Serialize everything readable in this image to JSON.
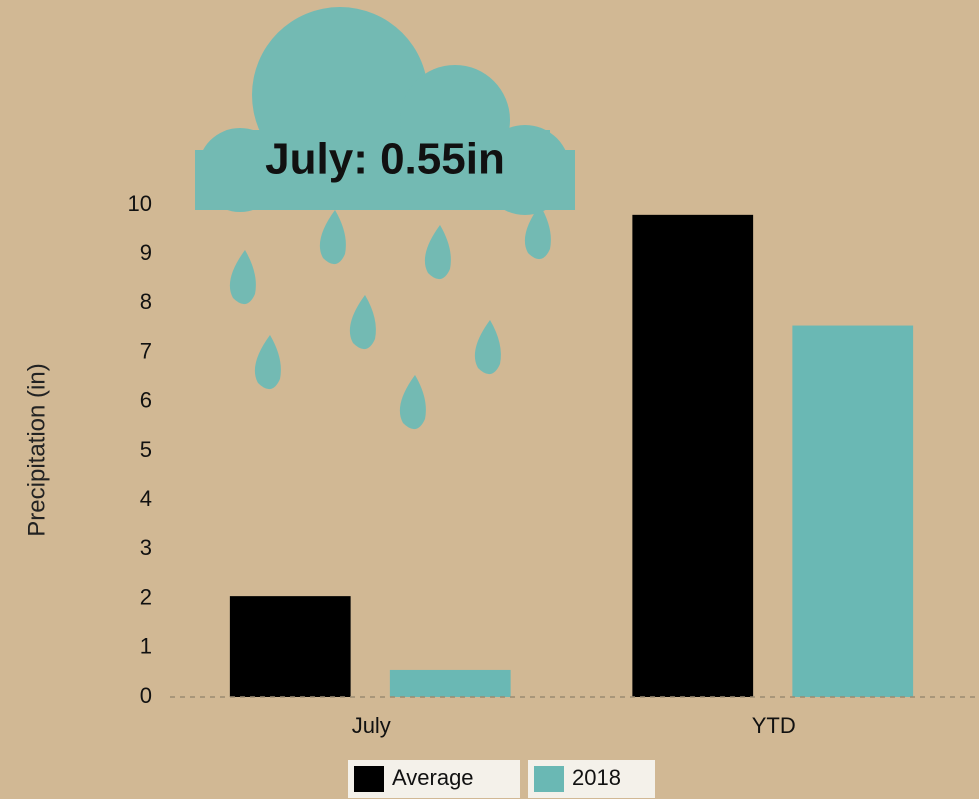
{
  "chart_data": {
    "type": "bar",
    "annotation": "July: 0.55in",
    "y_label": "Precipitation (in)",
    "categories": [
      "July",
      "YTD"
    ],
    "series": [
      {
        "name": "Average",
        "color": "#000000",
        "values": [
          2.05,
          9.8
        ]
      },
      {
        "name": "2018",
        "color": "#6ab8b4",
        "values": [
          0.55,
          7.55
        ]
      }
    ],
    "ylim": [
      0,
      10
    ],
    "yticks": [
      0,
      1,
      2,
      3,
      4,
      5,
      6,
      7,
      8,
      9,
      10
    ],
    "legend": "bottom"
  }
}
